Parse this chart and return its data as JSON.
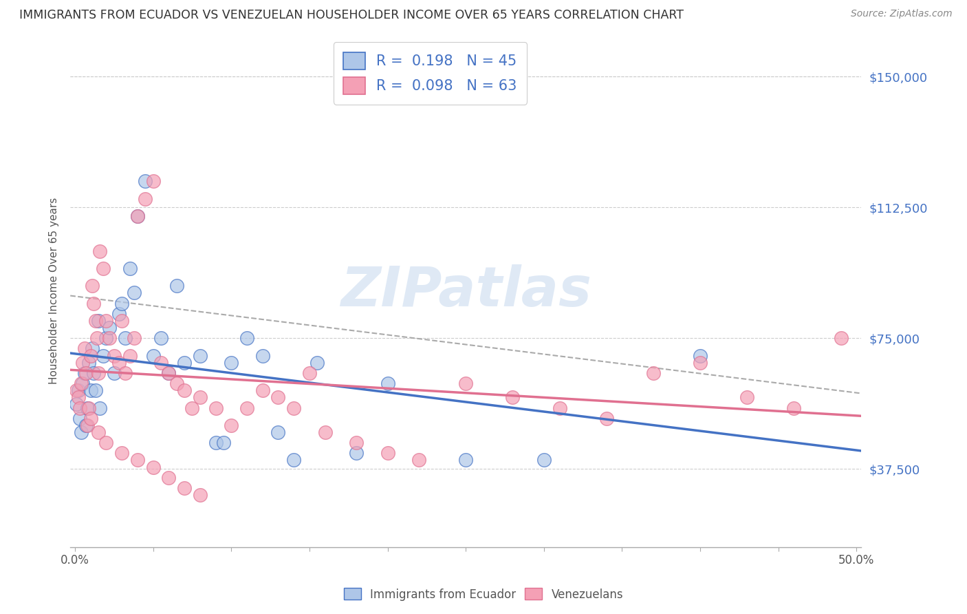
{
  "title": "IMMIGRANTS FROM ECUADOR VS VENEZUELAN HOUSEHOLDER INCOME OVER 65 YEARS CORRELATION CHART",
  "source": "Source: ZipAtlas.com",
  "ylabel": "Householder Income Over 65 years",
  "ytick_labels": [
    "$150,000",
    "$112,500",
    "$75,000",
    "$37,500"
  ],
  "ytick_values": [
    150000,
    112500,
    75000,
    37500
  ],
  "ymin": 15000,
  "ymax": 162000,
  "xmin": -0.003,
  "xmax": 0.503,
  "ecuador_color": "#aec6e8",
  "ecuador_edge_color": "#4472c4",
  "venezuela_color": "#f4a0b5",
  "venezuela_edge_color": "#e07090",
  "ecuador_line_color": "#4472c4",
  "venezuela_line_color": "#e07090",
  "dashed_line_color": "#aaaaaa",
  "watermark": "ZIPatlas",
  "bottom_legend1": "Immigrants from Ecuador",
  "bottom_legend2": "Venezuelans",
  "legend_label1": "R =  0.198   N = 45",
  "legend_label2": "R =  0.098   N = 63",
  "ecuador_x": [
    0.001,
    0.002,
    0.003,
    0.004,
    0.005,
    0.006,
    0.007,
    0.008,
    0.009,
    0.01,
    0.011,
    0.012,
    0.013,
    0.015,
    0.016,
    0.018,
    0.02,
    0.022,
    0.025,
    0.028,
    0.03,
    0.032,
    0.035,
    0.038,
    0.04,
    0.045,
    0.05,
    0.055,
    0.06,
    0.065,
    0.07,
    0.08,
    0.09,
    0.095,
    0.1,
    0.11,
    0.12,
    0.13,
    0.14,
    0.155,
    0.18,
    0.2,
    0.25,
    0.3,
    0.4
  ],
  "ecuador_y": [
    56000,
    60000,
    52000,
    48000,
    62000,
    65000,
    50000,
    55000,
    68000,
    60000,
    72000,
    65000,
    60000,
    80000,
    55000,
    70000,
    75000,
    78000,
    65000,
    82000,
    85000,
    75000,
    95000,
    88000,
    110000,
    120000,
    70000,
    75000,
    65000,
    90000,
    68000,
    70000,
    45000,
    45000,
    68000,
    75000,
    70000,
    48000,
    40000,
    68000,
    42000,
    62000,
    40000,
    40000,
    70000
  ],
  "venezuela_x": [
    0.001,
    0.002,
    0.003,
    0.004,
    0.005,
    0.006,
    0.007,
    0.008,
    0.009,
    0.01,
    0.011,
    0.012,
    0.013,
    0.014,
    0.015,
    0.016,
    0.018,
    0.02,
    0.022,
    0.025,
    0.028,
    0.03,
    0.032,
    0.035,
    0.038,
    0.04,
    0.045,
    0.05,
    0.055,
    0.06,
    0.065,
    0.07,
    0.075,
    0.08,
    0.09,
    0.1,
    0.11,
    0.12,
    0.13,
    0.14,
    0.15,
    0.16,
    0.18,
    0.2,
    0.22,
    0.25,
    0.28,
    0.31,
    0.34,
    0.37,
    0.4,
    0.43,
    0.46,
    0.49,
    0.01,
    0.015,
    0.02,
    0.03,
    0.04,
    0.05,
    0.06,
    0.07,
    0.08
  ],
  "venezuela_y": [
    60000,
    58000,
    55000,
    62000,
    68000,
    72000,
    65000,
    50000,
    55000,
    70000,
    90000,
    85000,
    80000,
    75000,
    65000,
    100000,
    95000,
    80000,
    75000,
    70000,
    68000,
    80000,
    65000,
    70000,
    75000,
    110000,
    115000,
    120000,
    68000,
    65000,
    62000,
    60000,
    55000,
    58000,
    55000,
    50000,
    55000,
    60000,
    58000,
    55000,
    65000,
    48000,
    45000,
    42000,
    40000,
    62000,
    58000,
    55000,
    52000,
    65000,
    68000,
    58000,
    55000,
    75000,
    52000,
    48000,
    45000,
    42000,
    40000,
    38000,
    35000,
    32000,
    30000
  ]
}
